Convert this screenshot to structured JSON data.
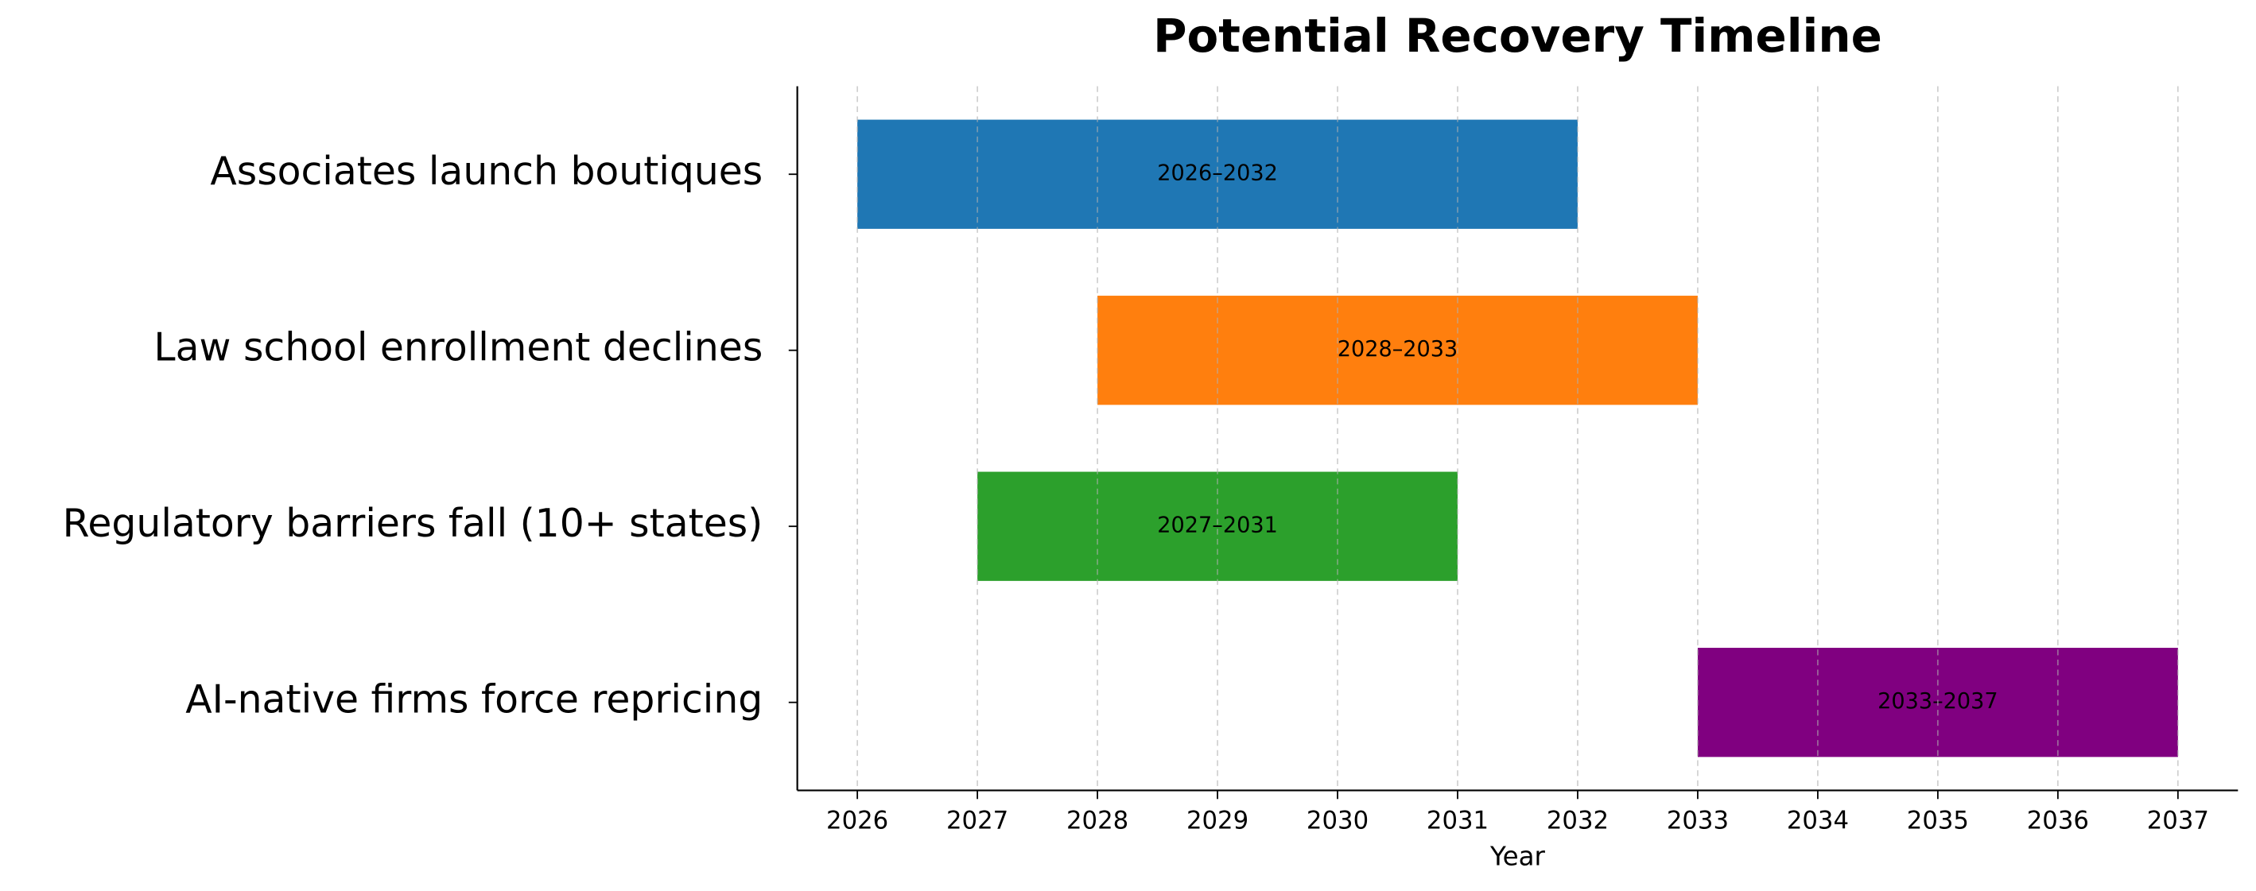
{
  "chart_data": {
    "type": "gantt",
    "title": "Potential Recovery Timeline",
    "xlabel": "Year",
    "categories": [
      "Associates launch boutiques",
      "Law school enrollment declines",
      "Regulatory barriers fall (10+ states)",
      "AI-native firms force repricing"
    ],
    "start": [
      2026,
      2028,
      2027,
      2033
    ],
    "end": [
      2032,
      2033,
      2031,
      2037
    ],
    "value_labels": [
      "2026–2032",
      "2028–2033",
      "2027–2031",
      "2033–2037"
    ],
    "colors": [
      "#1f77b4",
      "#ff7f0e",
      "#2ca02c",
      "#800080"
    ],
    "xlim": [
      2025.5,
      2037.5
    ],
    "xticks": [
      2026,
      2027,
      2028,
      2029,
      2030,
      2031,
      2032,
      2033,
      2034,
      2035,
      2036,
      2037
    ],
    "grid": true
  }
}
